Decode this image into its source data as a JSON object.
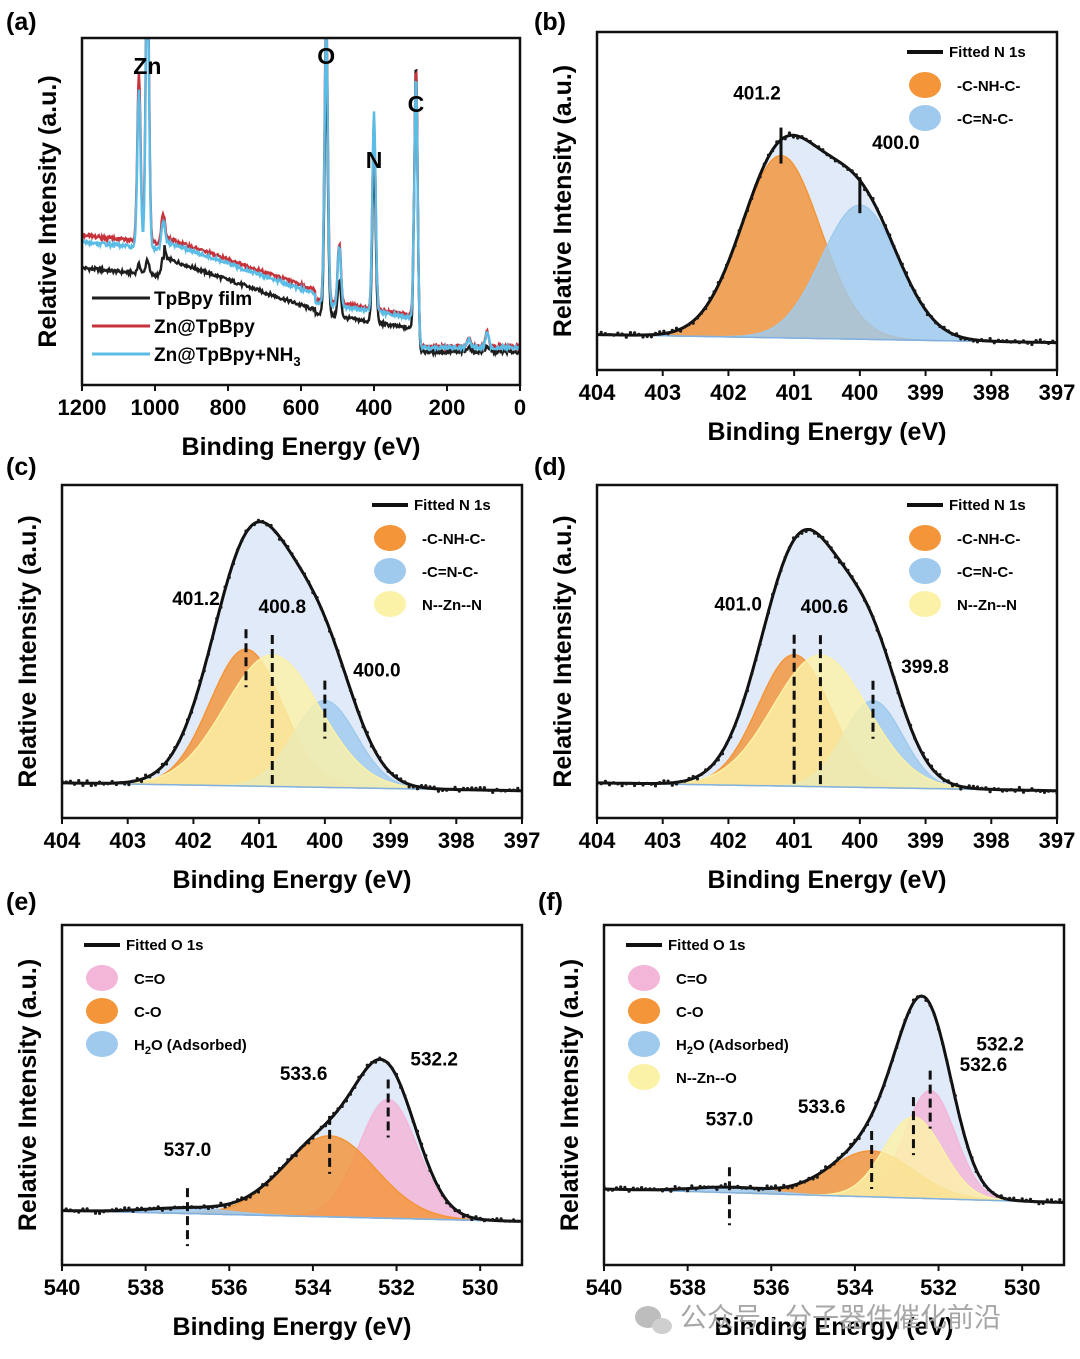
{
  "watermark": {
    "text": "公众号 · 分子器件催化前沿",
    "icon": "wechat-icon"
  },
  "chart_data": [
    {
      "id": "a",
      "panel_label": "(a)",
      "type": "line",
      "xlabel": "Binding Energy (eV)",
      "ylabel": "Relative Intensity (a.u.)",
      "xlim": [
        1200,
        0
      ],
      "xticks": [
        1200,
        1000,
        800,
        600,
        400,
        200,
        0
      ],
      "element_labels": [
        {
          "text": "Zn",
          "x": 1021
        },
        {
          "text": "O",
          "x": 531
        },
        {
          "text": "N",
          "x": 400
        },
        {
          "text": "C",
          "x": 285
        }
      ],
      "series": [
        {
          "name": "TpBpy film",
          "color": "#1e1e1e",
          "baseline": 0.42,
          "slope": 0.1,
          "peaks": [
            {
              "x": 1021,
              "h": 0.05
            },
            {
              "x": 1044,
              "h": 0.03
            },
            {
              "x": 978,
              "h": 0.06
            },
            {
              "x": 531,
              "h": 0.82
            },
            {
              "x": 495,
              "h": 0.12
            },
            {
              "x": 400,
              "h": 0.55
            },
            {
              "x": 285,
              "h": 0.96
            },
            {
              "x": 140,
              "h": 0.02
            },
            {
              "x": 90,
              "h": 0.02
            }
          ]
        },
        {
          "name": "Zn@TpBpy",
          "color": "#c8323a",
          "baseline": 0.57,
          "slope": 0.08,
          "peaks": [
            {
              "x": 1021,
              "h": 0.98
            },
            {
              "x": 1044,
              "h": 0.56
            },
            {
              "x": 978,
              "h": 0.1
            },
            {
              "x": 531,
              "h": 0.97
            },
            {
              "x": 495,
              "h": 0.2
            },
            {
              "x": 400,
              "h": 0.62
            },
            {
              "x": 285,
              "h": 0.93
            },
            {
              "x": 140,
              "h": 0.03
            },
            {
              "x": 90,
              "h": 0.05
            }
          ]
        },
        {
          "name": "Zn@TpBpy+NH3",
          "legend_main": "Zn@TpBpy+NH",
          "legend_sub": "3",
          "color": "#5bbde6",
          "baseline": 0.54,
          "slope": 0.08,
          "peaks": [
            {
              "x": 1021,
              "h": 0.93
            },
            {
              "x": 1044,
              "h": 0.52
            },
            {
              "x": 978,
              "h": 0.09
            },
            {
              "x": 531,
              "h": 0.92
            },
            {
              "x": 495,
              "h": 0.2
            },
            {
              "x": 400,
              "h": 0.66
            },
            {
              "x": 285,
              "h": 0.9
            },
            {
              "x": 140,
              "h": 0.03
            },
            {
              "x": 90,
              "h": 0.05
            }
          ]
        }
      ]
    },
    {
      "id": "b",
      "panel_label": "(b)",
      "type": "area",
      "xlabel": "Binding Energy (eV)",
      "ylabel": "Relative Intensity (a.u.)",
      "xlim": [
        404,
        397
      ],
      "xticks": [
        404,
        403,
        402,
        401,
        400,
        399,
        398,
        397
      ],
      "background": [
        0.05,
        0.02
      ],
      "fitted_label": "Fitted N 1s",
      "components": [
        {
          "name": "-C-NH-C-",
          "center": 401.2,
          "amp": 0.68,
          "sigma": 0.6,
          "color": "#f39538"
        },
        {
          "name": "-C=N-C-",
          "center": 400.0,
          "amp": 0.5,
          "sigma": 0.58,
          "color": "#9fcaee"
        }
      ],
      "peak_labels": [
        {
          "text": "401.2",
          "x": 401.2
        },
        {
          "text": "400.0",
          "x": 400.0
        }
      ]
    },
    {
      "id": "c",
      "panel_label": "(c)",
      "type": "area",
      "xlabel": "Binding Energy (eV)",
      "ylabel": "Relative Intensity (a.u.)",
      "xlim": [
        404,
        397
      ],
      "xticks": [
        404,
        403,
        402,
        401,
        400,
        399,
        398,
        397
      ],
      "background": [
        0.05,
        0.02
      ],
      "fitted_label": "Fitted N 1s",
      "components": [
        {
          "name": "-C-NH-C-",
          "center": 401.2,
          "amp": 0.52,
          "sigma": 0.55,
          "color": "#f39538"
        },
        {
          "name": "-C=N-C-",
          "center": 400.0,
          "amp": 0.33,
          "sigma": 0.48,
          "color": "#9fcaee"
        },
        {
          "name": "N--Zn--N",
          "center": 400.8,
          "amp": 0.5,
          "sigma": 0.72,
          "color": "#fbf2a8"
        }
      ],
      "peak_labels": [
        {
          "text": "401.2",
          "x": 401.2
        },
        {
          "text": "400.8",
          "x": 400.8
        },
        {
          "text": "400.0",
          "x": 400.0
        }
      ]
    },
    {
      "id": "d",
      "panel_label": "(d)",
      "type": "area",
      "xlabel": "Binding Energy (eV)",
      "ylabel": "Relative Intensity (a.u.)",
      "xlim": [
        404,
        397
      ],
      "xticks": [
        404,
        403,
        402,
        401,
        400,
        399,
        398,
        397
      ],
      "background": [
        0.05,
        0.02
      ],
      "fitted_label": "Fitted N 1s",
      "components": [
        {
          "name": "-C-NH-C-",
          "center": 401.0,
          "amp": 0.5,
          "sigma": 0.55,
          "color": "#f39538"
        },
        {
          "name": "-C=N-C-",
          "center": 399.8,
          "amp": 0.33,
          "sigma": 0.45,
          "color": "#9fcaee"
        },
        {
          "name": "N--Zn--N",
          "center": 400.6,
          "amp": 0.5,
          "sigma": 0.72,
          "color": "#fbf2a8"
        }
      ],
      "peak_labels": [
        {
          "text": "401.0",
          "x": 401.0
        },
        {
          "text": "400.6",
          "x": 400.6
        },
        {
          "text": "399.8",
          "x": 399.8
        }
      ]
    },
    {
      "id": "e",
      "panel_label": "(e)",
      "type": "area",
      "xlabel": "Binding Energy (eV)",
      "ylabel": "Relative Intensity (a.u.)",
      "xlim": [
        540,
        529
      ],
      "xticks": [
        540,
        538,
        536,
        534,
        532,
        530
      ],
      "background": [
        0.12,
        0.08
      ],
      "fitted_label": "Fitted O 1s",
      "components": [
        {
          "name": "C=O",
          "center": 532.2,
          "amp": 0.44,
          "sigma": 0.7,
          "color": "#f3b6d8"
        },
        {
          "name": "C-O",
          "center": 533.6,
          "amp": 0.3,
          "sigma": 1.1,
          "color": "#f39538"
        },
        {
          "name": "H2O (Adsorbed)",
          "legend_main": "H",
          "legend_sub": "2",
          "legend_tail": "O (Adsorbed)",
          "center": 537.0,
          "amp": 0.02,
          "sigma": 1.0,
          "color": "#9fcaee"
        }
      ],
      "peak_labels": [
        {
          "text": "532.2",
          "x": 532.2
        },
        {
          "text": "533.6",
          "x": 533.6
        },
        {
          "text": "537.0",
          "x": 537.0
        }
      ]
    },
    {
      "id": "f",
      "panel_label": "(f)",
      "type": "area",
      "xlabel": "Binding Energy (eV)",
      "ylabel": "Relative Intensity (a.u.)",
      "xlim": [
        540,
        529
      ],
      "xticks": [
        540,
        538,
        536,
        534,
        532,
        530
      ],
      "background": [
        0.2,
        0.15
      ],
      "fitted_label": "Fitted O 1s",
      "components": [
        {
          "name": "C=O",
          "center": 532.2,
          "amp": 0.4,
          "sigma": 0.6,
          "color": "#f3b6d8"
        },
        {
          "name": "C-O",
          "center": 533.6,
          "amp": 0.17,
          "sigma": 1.0,
          "color": "#f39538"
        },
        {
          "name": "H2O (Adsorbed)",
          "legend_main": "H",
          "legend_sub": "2",
          "legend_tail": "O (Adsorbed)",
          "center": 537.0,
          "amp": 0.02,
          "sigma": 0.9,
          "color": "#9fcaee"
        },
        {
          "name": "N--Zn--O",
          "center": 532.6,
          "amp": 0.3,
          "sigma": 0.7,
          "color": "#fbf2a8"
        }
      ],
      "peak_labels": [
        {
          "text": "532.2",
          "x": 532.2
        },
        {
          "text": "532.6",
          "x": 532.6
        },
        {
          "text": "533.6",
          "x": 533.6
        },
        {
          "text": "537.0",
          "x": 537.0
        }
      ]
    }
  ]
}
